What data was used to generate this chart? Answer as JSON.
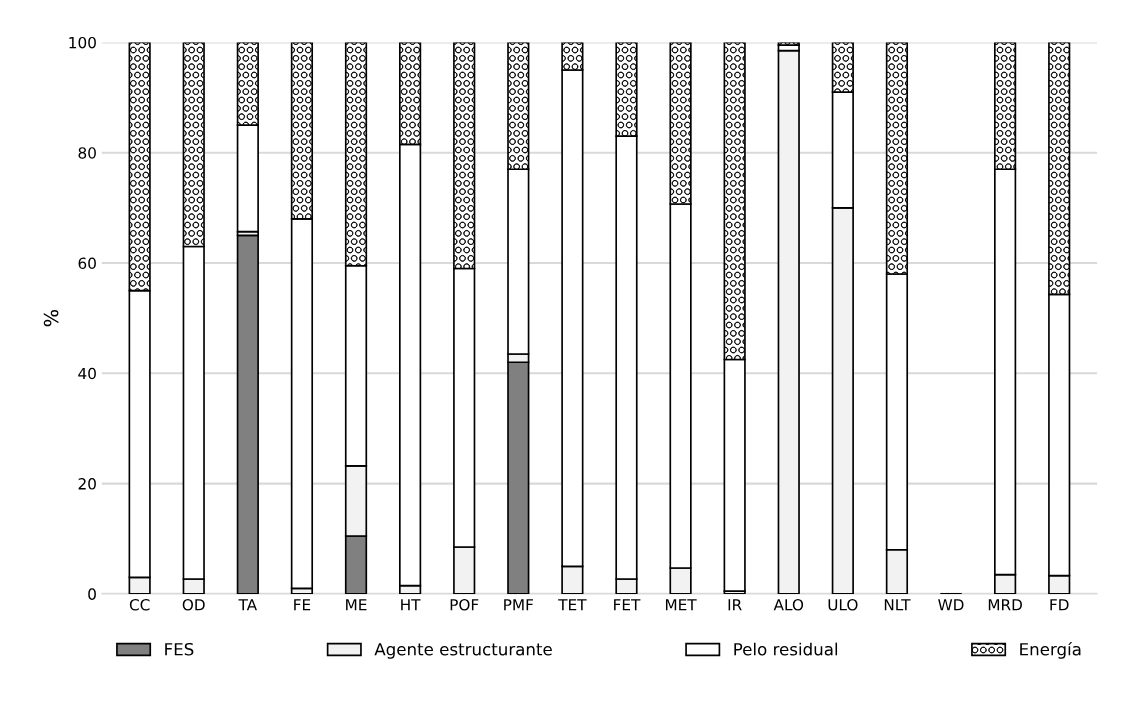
{
  "chart_data": {
    "type": "bar",
    "stacked": true,
    "ylabel": "%",
    "categories": [
      "CC",
      "OD",
      "TA",
      "FE",
      "ME",
      "HT",
      "POF",
      "PMF",
      "TET",
      "FET",
      "MET",
      "IR",
      "ALO",
      "ULO",
      "NLT",
      "WD",
      "MRD",
      "FD"
    ],
    "series": [
      {
        "name": "FES",
        "color": "#808080",
        "values": [
          0,
          0,
          65,
          0,
          10.5,
          0,
          0,
          42,
          0,
          0,
          0,
          0,
          0,
          0,
          0,
          0,
          0,
          0
        ]
      },
      {
        "name": "Agente estructurante",
        "color": "#f2f2f2",
        "values": [
          3,
          2.7,
          0.7,
          1,
          12.7,
          1.5,
          8.5,
          1.5,
          5,
          2.7,
          4.7,
          0.5,
          98.5,
          70,
          8,
          0,
          3.5,
          3.3
        ]
      },
      {
        "name": "Pelo residual",
        "color": "#ffffff",
        "values": [
          52,
          60.3,
          19.3,
          67,
          36.3,
          80,
          50.5,
          33.5,
          90,
          80.3,
          66,
          42,
          1,
          21,
          50,
          0,
          73.5,
          51
        ]
      },
      {
        "name": "Energía",
        "color": "#000000",
        "values": [
          45,
          37,
          15,
          32,
          40.5,
          18.5,
          41,
          23,
          5,
          17,
          29.3,
          57.5,
          0.5,
          9,
          42,
          0,
          23,
          45.7
        ]
      }
    ],
    "ylim": [
      0,
      100
    ],
    "yticks": [
      0,
      20,
      40,
      60,
      80,
      100
    ],
    "grid": "y",
    "legend": "bottom"
  }
}
